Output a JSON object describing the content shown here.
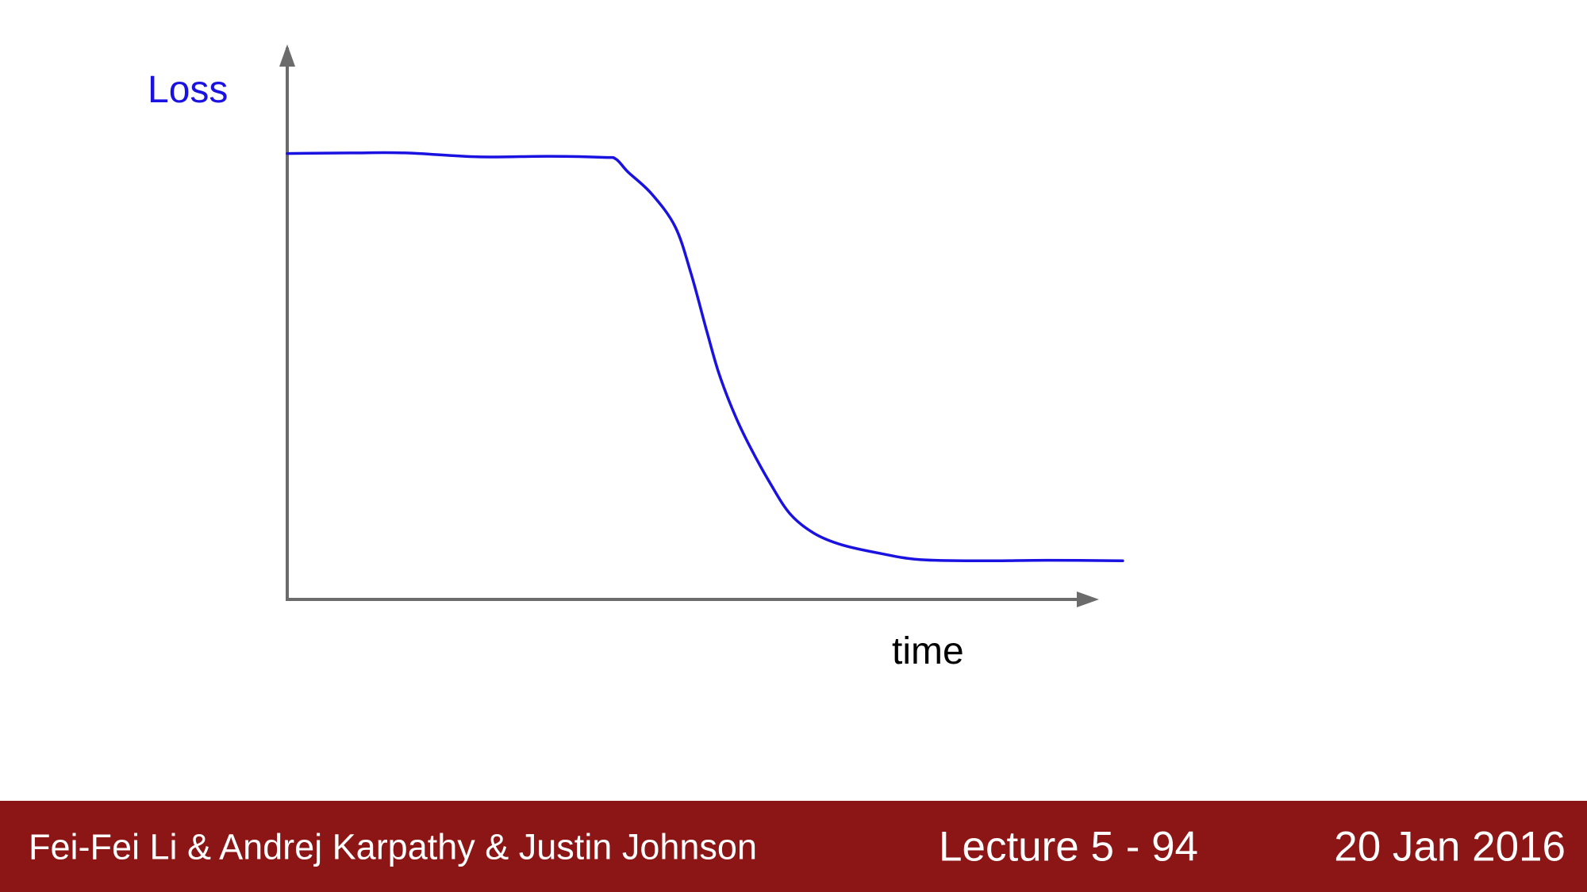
{
  "chart_data": {
    "type": "line",
    "xlabel": "time",
    "ylabel": "Loss",
    "grid": false,
    "legend": "none",
    "xlim": [
      0,
      100
    ],
    "ylim": [
      0,
      100
    ],
    "series": [
      {
        "color": "#1a12e0",
        "x": [
          0,
          8,
          15,
          24,
          33,
          40,
          41.5,
          43,
          46,
          49,
          51,
          53,
          54.5,
          56.5,
          58.5,
          61,
          63.5,
          66.5,
          70,
          75,
          80,
          88,
          96,
          105.5
        ],
        "y": [
          80.8,
          80.9,
          80.9,
          80.2,
          80.3,
          80.1,
          79.8,
          77.5,
          73.5,
          67.5,
          59,
          48.5,
          41,
          33.5,
          27.5,
          21,
          15.5,
          12,
          9.9,
          8.3,
          7.2,
          7,
          7.1,
          7
        ]
      }
    ]
  },
  "footer": {
    "authors": "Fei-Fei Li & Andrej Karpathy & Justin Johnson",
    "lecture": "Lecture 5 - 94",
    "date": "20 Jan 2016",
    "background": "#8c1515",
    "text_color": "#ffffff"
  }
}
